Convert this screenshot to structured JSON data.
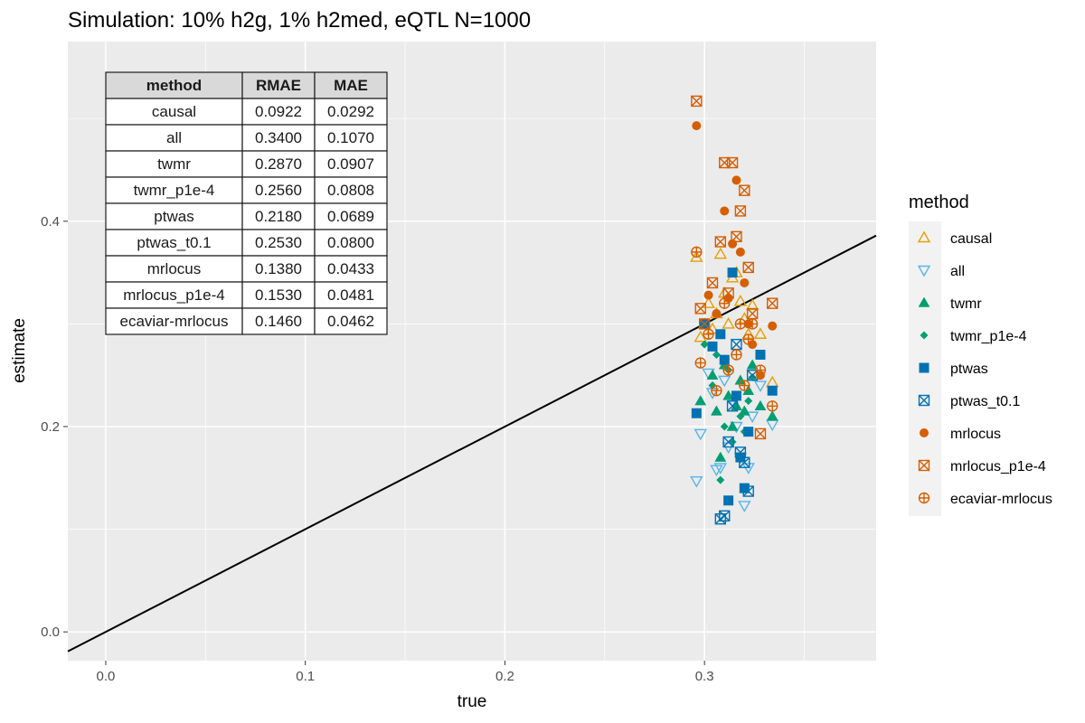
{
  "chart_data": {
    "type": "scatter",
    "title": "Simulation: 10% h2g, 1% h2med, eQTL N=1000",
    "xlabel": "true",
    "ylabel": "estimate",
    "xlim": [
      -0.019,
      0.386
    ],
    "ylim": [
      -0.028,
      0.575
    ],
    "x_ticks": [
      0.0,
      0.1,
      0.2,
      0.3
    ],
    "y_ticks": [
      0.0,
      0.2,
      0.4
    ],
    "x_tick_labels": [
      "0.0",
      "0.1",
      "0.2",
      "0.3"
    ],
    "y_tick_labels": [
      "0.0",
      "0.2",
      "0.4"
    ],
    "grid": true,
    "panel_background": "#ebebeb",
    "reference_line": {
      "type": "identity",
      "slope": 1,
      "intercept": 0
    },
    "legend": {
      "title": "method",
      "position": "right"
    },
    "series": [
      {
        "name": "causal",
        "shape": "triangle-open",
        "color": "#E69F00",
        "x": [
          0.296,
          0.298,
          0.3,
          0.302,
          0.304,
          0.306,
          0.308,
          0.31,
          0.312,
          0.314,
          0.316,
          0.318,
          0.32,
          0.322,
          0.324,
          0.328,
          0.334
        ],
        "y": [
          0.365,
          0.287,
          0.3,
          0.32,
          0.295,
          0.31,
          0.368,
          0.33,
          0.3,
          0.345,
          0.35,
          0.322,
          0.305,
          0.29,
          0.318,
          0.29,
          0.243
        ]
      },
      {
        "name": "all",
        "shape": "triangle-down-open",
        "color": "#56B4E9",
        "x": [
          0.296,
          0.298,
          0.302,
          0.304,
          0.306,
          0.308,
          0.31,
          0.312,
          0.314,
          0.316,
          0.318,
          0.32,
          0.322,
          0.324,
          0.328,
          0.334
        ],
        "y": [
          0.147,
          0.193,
          0.252,
          0.233,
          0.158,
          0.16,
          0.245,
          0.18,
          0.225,
          0.2,
          0.17,
          0.123,
          0.16,
          0.21,
          0.24,
          0.202
        ]
      },
      {
        "name": "twmr",
        "shape": "triangle-filled",
        "color": "#009E73",
        "x": [
          0.298,
          0.3,
          0.304,
          0.306,
          0.308,
          0.31,
          0.312,
          0.314,
          0.316,
          0.318,
          0.32,
          0.322,
          0.324,
          0.328,
          0.334
        ],
        "y": [
          0.225,
          0.3,
          0.25,
          0.215,
          0.17,
          0.26,
          0.23,
          0.2,
          0.22,
          0.245,
          0.215,
          0.235,
          0.26,
          0.22,
          0.21
        ]
      },
      {
        "name": "twmr_p1e-4",
        "shape": "diamond-filled",
        "color": "#009E73",
        "x": [
          0.3,
          0.304,
          0.306,
          0.308,
          0.31,
          0.312,
          0.314,
          0.316,
          0.318,
          0.32,
          0.322,
          0.324
        ],
        "y": [
          0.28,
          0.24,
          0.27,
          0.148,
          0.2,
          0.255,
          0.185,
          0.23,
          0.21,
          0.195,
          0.225,
          0.248
        ]
      },
      {
        "name": "ptwas",
        "shape": "square-filled",
        "color": "#0072B2",
        "x": [
          0.296,
          0.3,
          0.304,
          0.308,
          0.31,
          0.312,
          0.314,
          0.316,
          0.318,
          0.32,
          0.322,
          0.328,
          0.334
        ],
        "y": [
          0.213,
          0.3,
          0.278,
          0.29,
          0.265,
          0.128,
          0.35,
          0.23,
          0.17,
          0.14,
          0.195,
          0.27,
          0.235
        ]
      },
      {
        "name": "ptwas_t0.1",
        "shape": "square-x",
        "color": "#0072B2",
        "x": [
          0.308,
          0.31,
          0.312,
          0.314,
          0.316,
          0.318,
          0.32,
          0.322,
          0.324
        ],
        "y": [
          0.11,
          0.113,
          0.185,
          0.22,
          0.28,
          0.175,
          0.165,
          0.137,
          0.25
        ]
      },
      {
        "name": "mrlocus",
        "shape": "circle-filled",
        "color": "#D55E00",
        "x": [
          0.296,
          0.302,
          0.306,
          0.31,
          0.312,
          0.314,
          0.316,
          0.318,
          0.32,
          0.322,
          0.324,
          0.328,
          0.334
        ],
        "y": [
          0.493,
          0.328,
          0.31,
          0.41,
          0.325,
          0.378,
          0.44,
          0.37,
          0.34,
          0.3,
          0.28,
          0.25,
          0.298
        ]
      },
      {
        "name": "mrlocus_p1e-4",
        "shape": "square-x",
        "color": "#D55E00",
        "x": [
          0.296,
          0.298,
          0.3,
          0.304,
          0.308,
          0.31,
          0.312,
          0.314,
          0.316,
          0.318,
          0.32,
          0.322,
          0.324,
          0.328,
          0.334
        ],
        "y": [
          0.517,
          0.315,
          0.3,
          0.34,
          0.38,
          0.457,
          0.33,
          0.457,
          0.385,
          0.41,
          0.43,
          0.355,
          0.31,
          0.193,
          0.32
        ]
      },
      {
        "name": "ecaviar-mrlocus",
        "shape": "circle-plus",
        "color": "#D55E00",
        "x": [
          0.296,
          0.298,
          0.302,
          0.306,
          0.31,
          0.312,
          0.316,
          0.318,
          0.32,
          0.322,
          0.324,
          0.328,
          0.334
        ],
        "y": [
          0.37,
          0.262,
          0.29,
          0.235,
          0.32,
          0.255,
          0.27,
          0.3,
          0.24,
          0.285,
          0.3,
          0.255,
          0.22
        ]
      }
    ],
    "table": {
      "columns": [
        "method",
        "RMAE",
        "MAE"
      ],
      "rows": [
        [
          "causal",
          "0.0922",
          "0.0292"
        ],
        [
          "all",
          "0.3400",
          "0.1070"
        ],
        [
          "twmr",
          "0.2870",
          "0.0907"
        ],
        [
          "twmr_p1e-4",
          "0.2560",
          "0.0808"
        ],
        [
          "ptwas",
          "0.2180",
          "0.0689"
        ],
        [
          "ptwas_t0.1",
          "0.2530",
          "0.0800"
        ],
        [
          "mrlocus",
          "0.1380",
          "0.0433"
        ],
        [
          "mrlocus_p1e-4",
          "0.1530",
          "0.0481"
        ],
        [
          "ecaviar-mrlocus",
          "0.1460",
          "0.0462"
        ]
      ]
    }
  }
}
